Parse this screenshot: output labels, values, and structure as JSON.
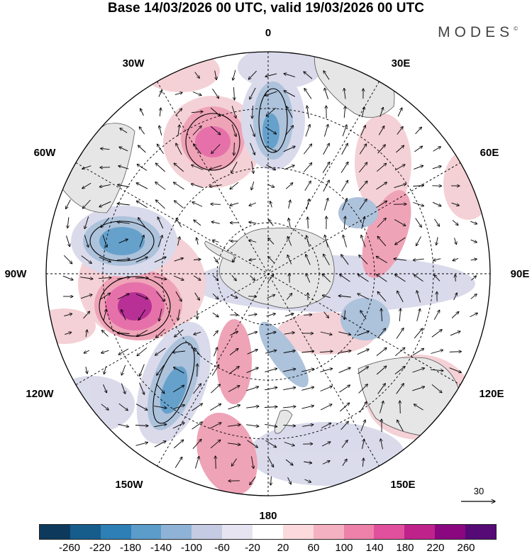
{
  "header": {
    "title": "Base 14/03/2026 00 UTC, valid 19/03/2026 00 UTC",
    "brand": "MODES",
    "brand_mark": "©"
  },
  "map": {
    "projection": "south-polar-stereographic",
    "longitude_labels": {
      "top": "0",
      "top_right": "30E",
      "right_upper": "60E",
      "right": "90E",
      "right_lower": "120E",
      "bottom_right": "150E",
      "bottom": "180",
      "bottom_left": "150W",
      "left_lower": "120W",
      "left": "90W",
      "left_upper": "60W",
      "top_left": "30W"
    },
    "reference_vector": {
      "label": "30"
    },
    "colors": {
      "land": "#e6e6e6",
      "coast": "#555555",
      "grid": "#000000",
      "pos_light": "#f4cfd4",
      "pos_mid": "#ef9fb4",
      "pos_strong": "#e56aa6",
      "pos_max": "#b52591",
      "neg_light": "#d8d9ea",
      "neg_mid": "#a9bfda",
      "neg_strong": "#5e9cca",
      "neg_max": "#2d77ad"
    }
  },
  "colorbar": {
    "colors": [
      "#0d3a5c",
      "#165d8c",
      "#2d7fb5",
      "#5b9ccb",
      "#8fb3d6",
      "#c4cbe2",
      "#e6e4f1",
      "#ffffff",
      "#fbd9dd",
      "#f4b1c1",
      "#ed81aa",
      "#e1509c",
      "#c0228b",
      "#8a077f",
      "#550a76"
    ],
    "tick_labels": [
      "-260",
      "-220",
      "-180",
      "-140",
      "-100",
      "-60",
      "-20",
      "20",
      "60",
      "100",
      "140",
      "180",
      "220",
      "260"
    ]
  }
}
